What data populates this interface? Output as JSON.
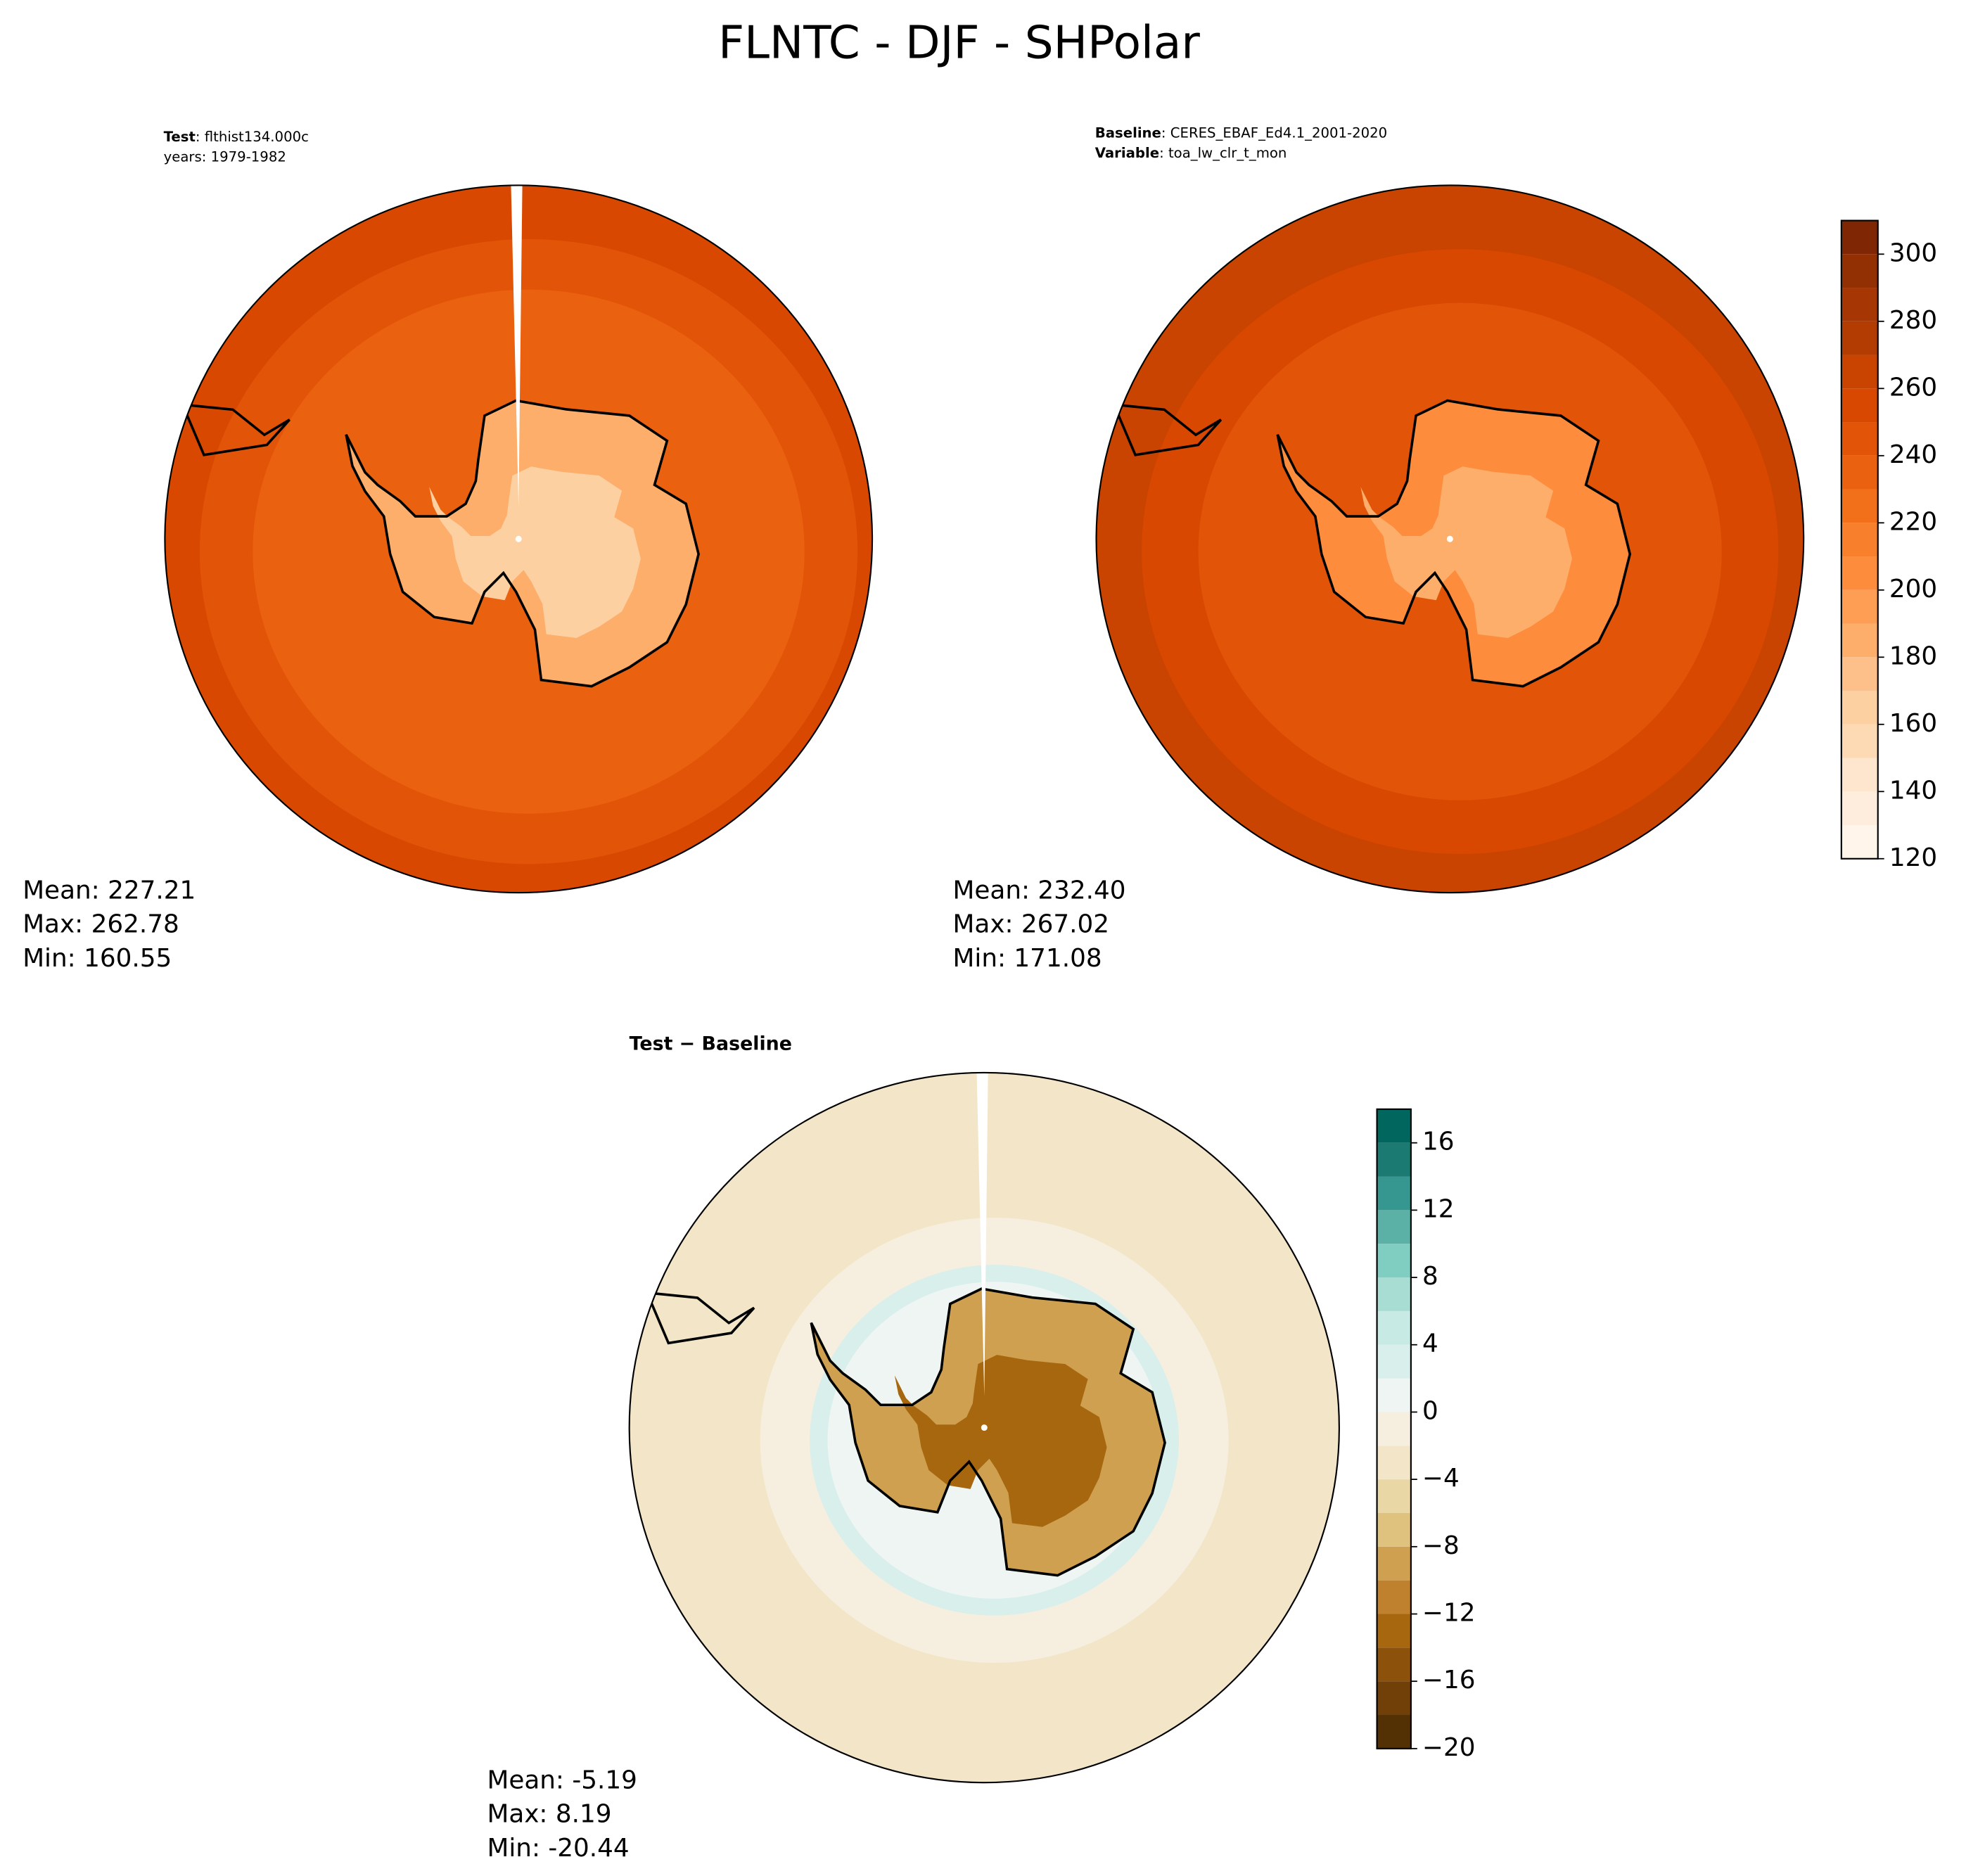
{
  "title": "FLNTC - DJF - SHPolar",
  "chart_data": [
    {
      "type": "map",
      "header": [
        {
          "key": "Test",
          "text": ": flthist134.000c"
        },
        {
          "text": "years: 1979-1982"
        }
      ],
      "stats": [
        "Mean: 227.21",
        "Max: 262.78",
        "Min: 160.55"
      ]
    },
    {
      "type": "map",
      "header": [
        {
          "key": "Baseline",
          "text": ": CERES_EBAF_Ed4.1_2001-2020"
        },
        {
          "key": "Variable",
          "text": ": toa_lw_clr_t_mon"
        }
      ],
      "stats": [
        "Mean: 232.40",
        "Max: 267.02",
        "Min: 171.08"
      ],
      "levels": [
        120,
        130,
        140,
        150,
        160,
        170,
        180,
        190,
        200,
        210,
        220,
        230,
        240,
        250,
        260,
        270,
        280,
        290,
        300,
        310
      ],
      "colors": [
        "#fff5eb",
        "#feeddc",
        "#fee6ce",
        "#fdd9b4",
        "#fdd0a2",
        "#fdc08a",
        "#fdae6b",
        "#fd9e54",
        "#fd8d3c",
        "#f87f2c",
        "#f3701b",
        "#ea6110",
        "#e25407",
        "#d94801",
        "#c94401",
        "#b33c02",
        "#a63603",
        "#933003",
        "#7f2704"
      ],
      "cticks": [
        120,
        140,
        160,
        180,
        200,
        220,
        240,
        260,
        280,
        300
      ]
    },
    {
      "type": "map",
      "header": [
        {
          "key": "Test − Baseline"
        }
      ],
      "stats": [
        "Mean: -5.19",
        "Max:  8.19",
        "Min: -20.44"
      ],
      "levels": [
        -20,
        -18,
        -16,
        -14,
        -12,
        -10,
        -8,
        -6,
        -4,
        -2,
        0,
        2,
        4,
        6,
        8,
        10,
        12,
        14,
        16,
        18
      ],
      "colors": [
        "#543005",
        "#704008",
        "#8c510a",
        "#a6670f",
        "#bf812d",
        "#cfa050",
        "#dfc27d",
        "#e9d7a5",
        "#f3e6c8",
        "#f6efe0",
        "#eef5f3",
        "#d8efeb",
        "#c7eae5",
        "#a7ddd3",
        "#80cdc1",
        "#5cb1a7",
        "#35978f",
        "#1b7a71",
        "#01665e"
      ],
      "cticks": [
        {
          "value": -20,
          "label": "−20"
        },
        {
          "value": -16,
          "label": "−16"
        },
        {
          "value": -12,
          "label": "−12"
        },
        {
          "value": -8,
          "label": "−8"
        },
        {
          "value": -4,
          "label": "−4"
        },
        0,
        4,
        8,
        12,
        16
      ]
    }
  ]
}
